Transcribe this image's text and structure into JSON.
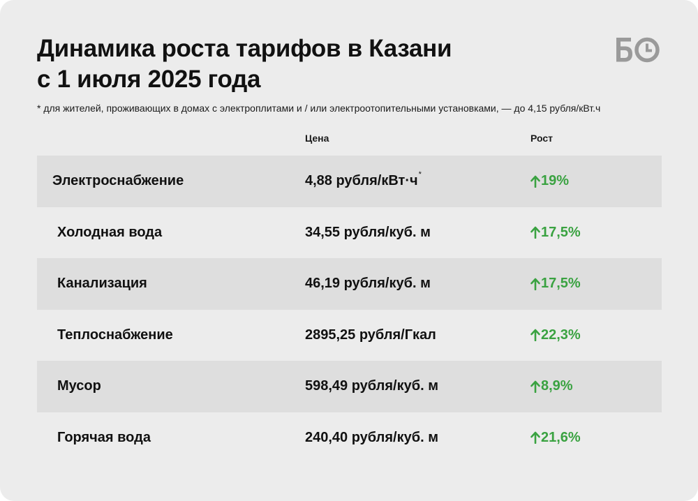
{
  "header": {
    "title_line1": "Динамика роста тарифов в Казани",
    "title_line2": "с 1 июля 2025 года",
    "logo_text": "БО",
    "footnote": "* для жителей, проживающих в домах с электроплитами и / или электроотопительными установками, — до 4,15 рубля/кВт.ч"
  },
  "columns": {
    "price": "Цена",
    "growth": "Рост"
  },
  "colors": {
    "background": "#ececec",
    "row_shade": "#dedede",
    "growth_green": "#3aa241",
    "logo_gray": "#9a9a9a"
  },
  "rows": [
    {
      "name": "Электроснабжение",
      "price": "4,88 рубля/кВт·ч",
      "price_mark": "*",
      "growth": "19%",
      "growth_icon": "arrow-up-icon"
    },
    {
      "name": "Холодная вода",
      "price": "34,55 рубля/куб. м",
      "growth": "17,5%",
      "growth_icon": "arrow-up-icon"
    },
    {
      "name": "Канализация",
      "price": "46,19 рубля/куб. м",
      "growth": "17,5%",
      "growth_icon": "arrow-up-icon"
    },
    {
      "name": "Теплоснабжение",
      "price": "2895,25 рубля/Гкал",
      "growth": "22,3%",
      "growth_icon": "arrow-up-icon"
    },
    {
      "name": "Мусор",
      "price": "598,49 рубля/куб. м",
      "growth": "8,9%",
      "growth_icon": "arrow-up-icon"
    },
    {
      "name": "Горячая вода",
      "price": "240,40 рубля/куб. м",
      "growth": "21,6%",
      "growth_icon": "arrow-up-icon"
    }
  ]
}
